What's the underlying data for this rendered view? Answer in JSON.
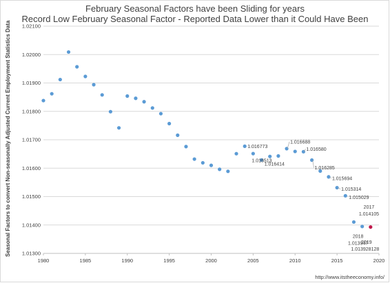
{
  "chart_data": {
    "type": "scatter",
    "title": "February Seasonal Factors have been Sliding for years",
    "subtitle": "Record Low February Seasonal Factor - Reported Data Lower than it Could Have  Been",
    "xlabel": "",
    "ylabel": "Seasonal Factors to convert Non-seasonally Adjusted Current Employment Statistics Data",
    "xlim": [
      1980,
      2020
    ],
    "ylim": [
      1.013,
      1.021
    ],
    "x_ticks": [
      "1980",
      "1985",
      "1990",
      "1995",
      "2000",
      "2005",
      "2010",
      "2015",
      "2020"
    ],
    "y_ticks": [
      "1.01300",
      "1.01400",
      "1.01500",
      "1.01600",
      "1.01700",
      "1.01800",
      "1.01900",
      "1.02000",
      "1.02100"
    ],
    "grid": "horizontal",
    "legend": "none",
    "series_color": "#5b9bd5",
    "highlight_color": "#c0184a",
    "points": [
      {
        "x": 1980,
        "y": 1.01838
      },
      {
        "x": 1981,
        "y": 1.01862
      },
      {
        "x": 1982,
        "y": 1.01912
      },
      {
        "x": 1983,
        "y": 1.02009
      },
      {
        "x": 1984,
        "y": 1.01957
      },
      {
        "x": 1985,
        "y": 1.01923
      },
      {
        "x": 1986,
        "y": 1.01894
      },
      {
        "x": 1987,
        "y": 1.01858
      },
      {
        "x": 1988,
        "y": 1.01799
      },
      {
        "x": 1989,
        "y": 1.01742
      },
      {
        "x": 1990,
        "y": 1.01854
      },
      {
        "x": 1991,
        "y": 1.01846
      },
      {
        "x": 1992,
        "y": 1.01834
      },
      {
        "x": 1993,
        "y": 1.01812
      },
      {
        "x": 1994,
        "y": 1.01792
      },
      {
        "x": 1995,
        "y": 1.01757
      },
      {
        "x": 1996,
        "y": 1.01716
      },
      {
        "x": 1997,
        "y": 1.01676
      },
      {
        "x": 1998,
        "y": 1.01632
      },
      {
        "x": 1999,
        "y": 1.01619
      },
      {
        "x": 2000,
        "y": 1.0161
      },
      {
        "x": 2001,
        "y": 1.01596
      },
      {
        "x": 2002,
        "y": 1.01589
      },
      {
        "x": 2003,
        "y": 1.01651
      },
      {
        "x": 2004,
        "y": 1.016773
      },
      {
        "x": 2005,
        "y": 1.016513
      },
      {
        "x": 2006,
        "y": 1.01629
      },
      {
        "x": 2007,
        "y": 1.016414
      },
      {
        "x": 2008,
        "y": 1.01643
      },
      {
        "x": 2009,
        "y": 1.016688
      },
      {
        "x": 2010,
        "y": 1.01659
      },
      {
        "x": 2011,
        "y": 1.01658
      },
      {
        "x": 2012,
        "y": 1.016285
      },
      {
        "x": 2013,
        "y": 1.0159
      },
      {
        "x": 2014,
        "y": 1.015694
      },
      {
        "x": 2015,
        "y": 1.015314
      },
      {
        "x": 2016,
        "y": 1.015029
      },
      {
        "x": 2017,
        "y": 1.014105
      },
      {
        "x": 2018,
        "y": 1.013947
      },
      {
        "x": 2019,
        "y": 1.013928128,
        "highlight": true
      }
    ],
    "annotations": [
      {
        "x": 2004,
        "text": "1.016773"
      },
      {
        "x": 2005,
        "text": "1.016513"
      },
      {
        "x": 2007,
        "text": "1.016414"
      },
      {
        "x": 2009,
        "text": "1.016688"
      },
      {
        "x": 2011,
        "text": "1.016580"
      },
      {
        "x": 2012,
        "text": "1.016285"
      },
      {
        "x": 2014,
        "text": "1.015694"
      },
      {
        "x": 2015,
        "text": "1.015314"
      },
      {
        "x": 2016,
        "text": "1.015029"
      },
      {
        "x": 2017,
        "text": "2017"
      },
      {
        "x": 2017,
        "text": "1.014105"
      },
      {
        "x": 2018,
        "text": "2018"
      },
      {
        "x": 2018,
        "text": "1.013947"
      },
      {
        "x": 2019,
        "text": "2019"
      },
      {
        "x": 2019,
        "text": "1.013928128"
      }
    ],
    "source": "http://www.itstheeconomy.info/"
  }
}
